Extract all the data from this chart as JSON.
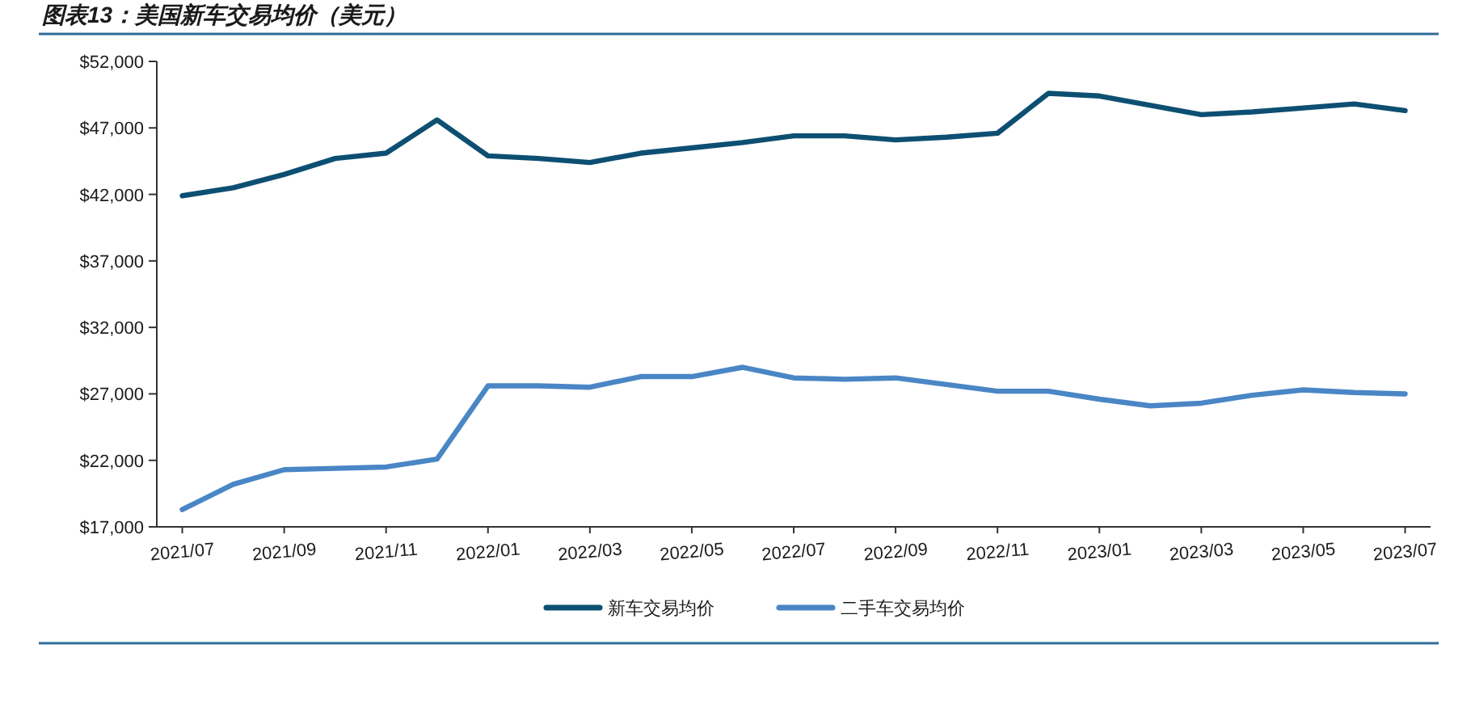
{
  "chart_data": {
    "type": "line",
    "title": "图表13：美国新车交易均价（美元）",
    "categories": [
      "2021/07",
      null,
      "2021/09",
      null,
      "2021/11",
      null,
      "2022/01",
      null,
      "2022/03",
      null,
      "2022/05",
      null,
      "2022/07",
      null,
      "2022/09",
      null,
      "2022/11",
      null,
      "2023/01",
      null,
      "2023/03",
      null,
      "2023/05",
      null,
      "2023/07"
    ],
    "series": [
      {
        "name": "新车交易均价",
        "color": "#0d4f72",
        "values": [
          41900,
          42500,
          43500,
          44700,
          45100,
          47600,
          44900,
          44700,
          44400,
          45100,
          45500,
          45900,
          46400,
          46400,
          46100,
          46300,
          46600,
          49600,
          49400,
          48700,
          48000,
          48200,
          48500,
          48800,
          48300
        ]
      },
      {
        "name": "二手车交易均价",
        "color": "#4a86c5",
        "values": [
          18300,
          20200,
          21300,
          21400,
          21500,
          22100,
          27600,
          27600,
          27500,
          28300,
          28300,
          29000,
          28200,
          28100,
          28200,
          27700,
          27200,
          27200,
          26600,
          26100,
          26300,
          26900,
          27300,
          27100,
          27000
        ]
      }
    ],
    "ylim": [
      17000,
      52000
    ],
    "yticks": [
      {
        "value": 17000,
        "label": "$17,000"
      },
      {
        "value": 22000,
        "label": "$22,000"
      },
      {
        "value": 27000,
        "label": "$27,000"
      },
      {
        "value": 32000,
        "label": "$32,000"
      },
      {
        "value": 37000,
        "label": "$37,000"
      },
      {
        "value": 42000,
        "label": "$42,000"
      },
      {
        "value": 47000,
        "label": "$47,000"
      },
      {
        "value": 52000,
        "label": "$52,000"
      }
    ],
    "grid": false,
    "legend": "bottom",
    "marker": "none",
    "line_style": "solid"
  }
}
